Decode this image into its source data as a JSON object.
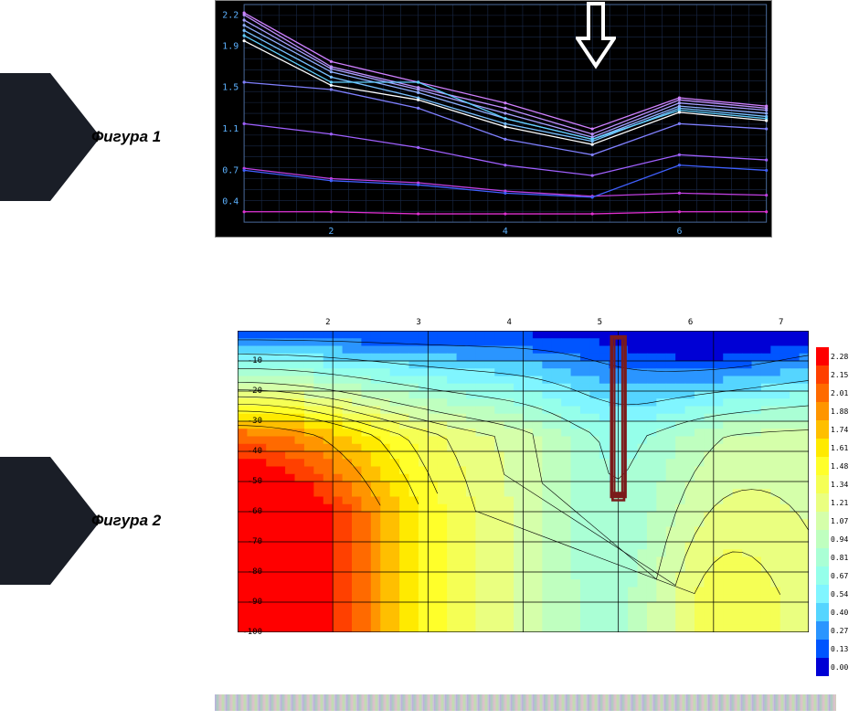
{
  "figure1": {
    "label": "Фигура 1",
    "marker_color": "#1a1e27",
    "type": "line",
    "background_color": "#000000",
    "grid_color": "#1a2a4a",
    "axis_color": "#5db2ff",
    "xlim": [
      1,
      7
    ],
    "ylim": [
      0.2,
      2.3
    ],
    "y_ticks": [
      0.4,
      0.7,
      1.1,
      1.5,
      1.9,
      2.2
    ],
    "x_ticks": [
      2,
      4,
      6
    ],
    "arrow": {
      "x": 5.2,
      "color": "#ffffff",
      "stroke_width": 4
    },
    "series": [
      {
        "color": "#d080ff",
        "y": [
          2.22,
          1.75,
          1.55,
          1.35,
          1.1,
          1.4,
          1.32
        ]
      },
      {
        "color": "#c090ff",
        "y": [
          2.2,
          1.7,
          1.5,
          1.3,
          1.05,
          1.38,
          1.3
        ]
      },
      {
        "color": "#a8a0ff",
        "y": [
          2.15,
          1.68,
          1.48,
          1.25,
          1.02,
          1.35,
          1.28
        ]
      },
      {
        "color": "#90b0ff",
        "y": [
          2.1,
          1.65,
          1.45,
          1.2,
          1.0,
          1.32,
          1.25
        ]
      },
      {
        "color": "#78c0ff",
        "y": [
          2.05,
          1.6,
          1.4,
          1.15,
          0.98,
          1.3,
          1.22
        ]
      },
      {
        "color": "#60d0ff",
        "y": [
          2.0,
          1.55,
          1.55,
          1.2,
          1.0,
          1.28,
          1.2
        ]
      },
      {
        "color": "#ffffff",
        "y": [
          1.95,
          1.52,
          1.38,
          1.12,
          0.95,
          1.26,
          1.18
        ]
      },
      {
        "color": "#8080ff",
        "y": [
          1.55,
          1.48,
          1.3,
          1.0,
          0.85,
          1.15,
          1.1
        ]
      },
      {
        "color": "#a060ff",
        "y": [
          1.15,
          1.05,
          0.92,
          0.75,
          0.65,
          0.85,
          0.8
        ]
      },
      {
        "color": "#c040e0",
        "y": [
          0.72,
          0.62,
          0.58,
          0.5,
          0.45,
          0.48,
          0.46
        ]
      },
      {
        "color": "#4060ff",
        "y": [
          0.7,
          0.6,
          0.56,
          0.48,
          0.44,
          0.75,
          0.7
        ]
      },
      {
        "color": "#e030d0",
        "y": [
          0.3,
          0.3,
          0.28,
          0.28,
          0.28,
          0.3,
          0.3
        ]
      }
    ]
  },
  "figure2": {
    "label": "Фигура 2",
    "marker_color": "#1a1e27",
    "type": "heatmap",
    "background_color": "#ffffff",
    "grid_color": "#000000",
    "xlim": [
      1,
      7
    ],
    "ylim": [
      -100,
      0
    ],
    "x_ticks": [
      2,
      3,
      4,
      5,
      6,
      7
    ],
    "y_ticks": [
      -10,
      -20,
      -30,
      -40,
      -50,
      -60,
      -70,
      -80,
      -90,
      -100
    ],
    "drill_marker": {
      "x": 5.0,
      "depth": -55,
      "color": "#7a1a1a",
      "width": 8
    },
    "legend": [
      {
        "val": "2.28",
        "color": "#ff0000"
      },
      {
        "val": "2.15",
        "color": "#ff4000"
      },
      {
        "val": "2.01",
        "color": "#ff6a00"
      },
      {
        "val": "1.88",
        "color": "#ff9500"
      },
      {
        "val": "1.74",
        "color": "#ffbf00"
      },
      {
        "val": "1.61",
        "color": "#ffea00"
      },
      {
        "val": "1.48",
        "color": "#ffff2a"
      },
      {
        "val": "1.34",
        "color": "#f5ff55"
      },
      {
        "val": "1.21",
        "color": "#eaff80"
      },
      {
        "val": "1.07",
        "color": "#d5ffaa"
      },
      {
        "val": "0.94",
        "color": "#bfffbf"
      },
      {
        "val": "0.81",
        "color": "#aaffd5"
      },
      {
        "val": "0.67",
        "color": "#95ffea"
      },
      {
        "val": "0.54",
        "color": "#80f5ff"
      },
      {
        "val": "0.40",
        "color": "#55d5ff"
      },
      {
        "val": "0.27",
        "color": "#2a95ff"
      },
      {
        "val": "0.13",
        "color": "#0055ff"
      },
      {
        "val": "0.00",
        "color": "#0000d5"
      }
    ]
  }
}
